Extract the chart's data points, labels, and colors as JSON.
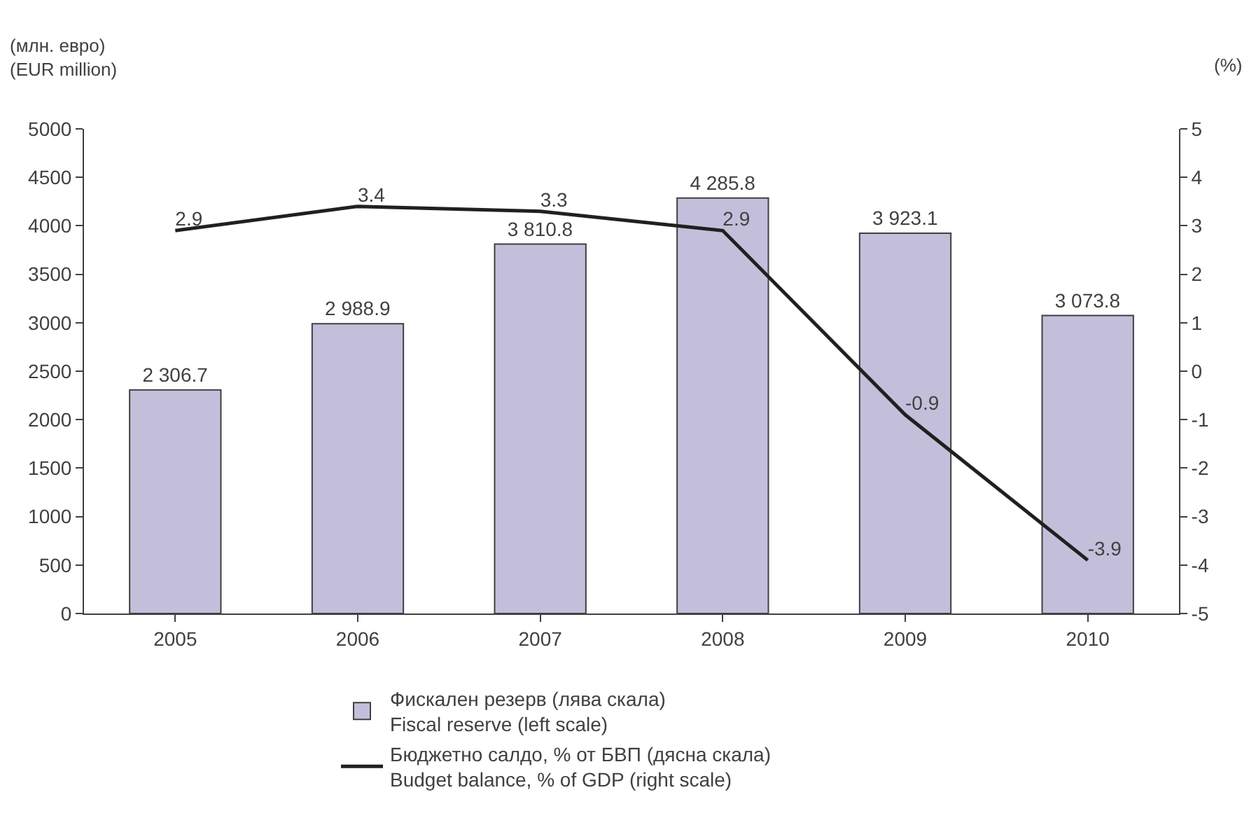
{
  "chart_data": {
    "type": "bar",
    "ylabel": "(млн. евро)\n(EUR million)",
    "y2label": "(%)",
    "categories": [
      "2005",
      "2006",
      "2007",
      "2008",
      "2009",
      "2010"
    ],
    "series": [
      {
        "name": "Фискален резерв (лява скала)\nFiscal reserve (left scale)",
        "color": "#c3bfdb",
        "values": [
          2306.7,
          2988.9,
          3810.8,
          4285.8,
          3923.1,
          3073.8
        ],
        "value_labels": [
          "2 306.7",
          "2 988.9",
          "3 810.8",
          "4 285.8",
          "3 923.1",
          "3 073.8"
        ]
      },
      {
        "name": "Бюджетно салдо, % от БВП (дясна скала)\nBudget balance, % of GDP (right scale)",
        "type": "line",
        "axis": "y2",
        "color": "#231f20",
        "values": [
          2.9,
          3.4,
          3.3,
          2.9,
          -0.9,
          -3.9
        ],
        "value_labels": [
          "2.9",
          "3.4",
          "3.3",
          "2.9",
          "-0.9",
          "-3.9"
        ]
      }
    ],
    "ylim": [
      0,
      5000
    ],
    "yticks": [
      0,
      500,
      1000,
      1500,
      2000,
      2500,
      3000,
      3500,
      4000,
      4500,
      5000
    ],
    "y2lim": [
      -5,
      5
    ],
    "y2ticks": [
      -5,
      -4,
      -3,
      -2,
      -1,
      0,
      1,
      2,
      3,
      4,
      5
    ],
    "legend": "bottom",
    "marker": "none"
  }
}
